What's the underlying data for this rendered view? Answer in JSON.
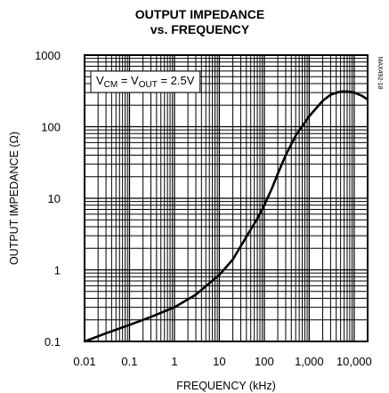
{
  "chart_data": {
    "type": "line",
    "title": "OUTPUT IMPEDANCE",
    "subtitle": "vs. FREQUENCY",
    "xlabel": "FREQUENCY (kHz)",
    "ylabel": "OUTPUT IMPEDANCE (Ω)",
    "xscale": "log",
    "yscale": "log",
    "xlim": [
      0.01,
      20000
    ],
    "ylim": [
      0.1,
      1000
    ],
    "x_ticks": [
      0.01,
      0.1,
      1,
      10,
      100,
      1000,
      10000
    ],
    "x_tick_labels": [
      "0.01",
      "0.1",
      "1",
      "10",
      "100",
      "1,000",
      "10,000"
    ],
    "y_ticks": [
      0.1,
      1,
      10,
      100,
      1000
    ],
    "y_tick_labels": [
      "0.1",
      "1",
      "10",
      "100",
      "1000"
    ],
    "grid": true,
    "annotation": {
      "parts": [
        "V",
        "CM",
        " = V",
        "OUT",
        " = 2.5V"
      ],
      "placement": "top-left"
    },
    "side_label": "MAX492-18",
    "series": [
      {
        "x": [
          0.01,
          0.03,
          0.1,
          0.3,
          1,
          3,
          10,
          20,
          40,
          70,
          100,
          150,
          200,
          300,
          500,
          1000,
          2000,
          3000,
          5000,
          7000,
          10000,
          15000,
          20000
        ],
        "y": [
          0.1,
          0.13,
          0.17,
          0.22,
          0.3,
          0.45,
          0.85,
          1.4,
          2.9,
          5.2,
          8.0,
          14,
          22,
          40,
          75,
          140,
          230,
          280,
          310,
          310,
          300,
          270,
          240
        ]
      }
    ]
  }
}
